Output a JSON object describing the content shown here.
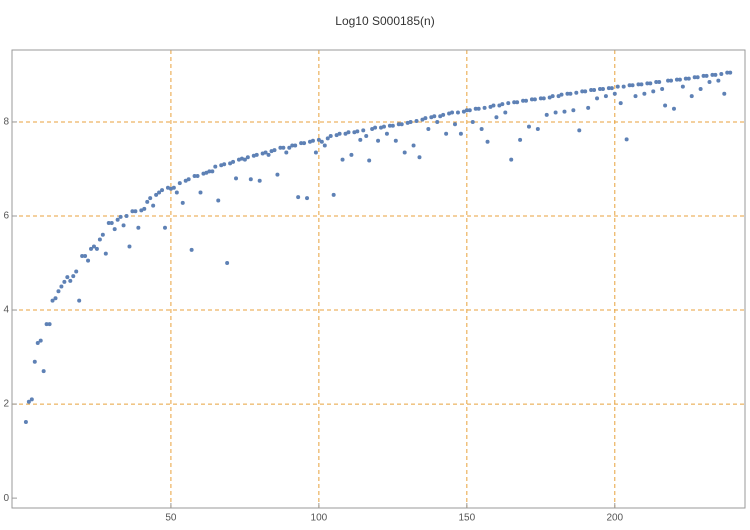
{
  "chart_data": {
    "type": "scatter",
    "title": "Log10 S000185(n)",
    "x": [
      1,
      2,
      3,
      4,
      5,
      6,
      7,
      8,
      9,
      10,
      11,
      12,
      13,
      14,
      15,
      16,
      17,
      18,
      19,
      20,
      21,
      22,
      23,
      24,
      25,
      26,
      27,
      28,
      29,
      30,
      31,
      32,
      33,
      34,
      35,
      36,
      37,
      38,
      39,
      40,
      41,
      42,
      43,
      44,
      45,
      46,
      47,
      48,
      49,
      50,
      51,
      52,
      53,
      54,
      55,
      56,
      57,
      58,
      59,
      60,
      61,
      62,
      63,
      64,
      65,
      66,
      67,
      68,
      69,
      70,
      71,
      72,
      73,
      74,
      75,
      76,
      77,
      78,
      79,
      80,
      81,
      82,
      83,
      84,
      85,
      86,
      87,
      88,
      89,
      90,
      91,
      92,
      93,
      94,
      95,
      96,
      97,
      98,
      99,
      100,
      101,
      102,
      103,
      104,
      105,
      106,
      107,
      108,
      109,
      110,
      111,
      112,
      113,
      114,
      115,
      116,
      117,
      118,
      119,
      120,
      121,
      122,
      123,
      124,
      125,
      126,
      127,
      128,
      129,
      130,
      131,
      132,
      133,
      134,
      135,
      136,
      137,
      138,
      139,
      140,
      141,
      142,
      143,
      144,
      145,
      146,
      147,
      148,
      149,
      150,
      151,
      152,
      153,
      154,
      155,
      156,
      157,
      158,
      159,
      160,
      161,
      162,
      163,
      164,
      165,
      166,
      167,
      168,
      169,
      170,
      171,
      172,
      173,
      174,
      175,
      176,
      177,
      178,
      179,
      180,
      181,
      182,
      183,
      184,
      185,
      186,
      187,
      188,
      189,
      190,
      191,
      192,
      193,
      194,
      195,
      196,
      197,
      198,
      199,
      200,
      201,
      202,
      203,
      204,
      205,
      206,
      207,
      208,
      209,
      210,
      211,
      212,
      213,
      214,
      215,
      216,
      217,
      218,
      219,
      220,
      221,
      222,
      223,
      224,
      225,
      226,
      227,
      228,
      229,
      230,
      231,
      232,
      233,
      234,
      235,
      236,
      237,
      238,
      239
    ],
    "values": [
      1.62,
      2.05,
      2.1,
      2.9,
      3.3,
      3.35,
      2.7,
      3.7,
      3.7,
      4.2,
      4.25,
      4.4,
      4.5,
      4.6,
      4.7,
      4.62,
      4.72,
      4.82,
      4.2,
      5.15,
      5.15,
      5.05,
      5.3,
      5.35,
      5.3,
      5.5,
      5.6,
      5.2,
      5.85,
      5.85,
      5.72,
      5.92,
      5.98,
      5.8,
      6.0,
      5.35,
      6.1,
      6.1,
      5.75,
      6.12,
      6.15,
      6.3,
      6.38,
      6.22,
      6.45,
      6.5,
      6.55,
      5.75,
      6.6,
      6.58,
      6.6,
      6.5,
      6.7,
      6.28,
      6.75,
      6.78,
      5.28,
      6.85,
      6.85,
      6.5,
      6.9,
      6.92,
      6.95,
      6.95,
      7.05,
      6.33,
      7.08,
      7.1,
      5.0,
      7.12,
      7.15,
      6.8,
      7.2,
      7.22,
      7.2,
      7.25,
      6.78,
      7.28,
      7.3,
      6.75,
      7.33,
      7.35,
      7.3,
      7.38,
      7.4,
      6.88,
      7.45,
      7.45,
      7.35,
      7.45,
      7.5,
      7.5,
      6.4,
      7.55,
      7.55,
      6.38,
      7.58,
      7.6,
      7.35,
      7.62,
      7.58,
      7.5,
      7.65,
      7.7,
      6.45,
      7.72,
      7.75,
      7.2,
      7.75,
      7.78,
      7.3,
      7.78,
      7.8,
      7.62,
      7.82,
      7.7,
      7.18,
      7.85,
      7.88,
      7.6,
      7.88,
      7.9,
      7.75,
      7.92,
      7.92,
      7.6,
      7.95,
      7.95,
      7.35,
      7.98,
      8.0,
      7.5,
      8.02,
      7.25,
      8.05,
      8.08,
      7.85,
      8.1,
      8.12,
      8.0,
      8.12,
      8.15,
      7.75,
      8.18,
      8.2,
      7.95,
      8.2,
      7.75,
      8.22,
      8.25,
      8.25,
      8.0,
      8.28,
      8.28,
      7.85,
      8.3,
      7.58,
      8.32,
      8.35,
      8.1,
      8.35,
      8.38,
      8.2,
      8.4,
      7.2,
      8.42,
      8.42,
      7.62,
      8.45,
      8.45,
      7.9,
      8.48,
      8.48,
      7.85,
      8.5,
      8.5,
      8.15,
      8.52,
      8.55,
      8.2,
      8.55,
      8.58,
      8.22,
      8.6,
      8.6,
      8.25,
      8.62,
      7.82,
      8.65,
      8.65,
      8.3,
      8.68,
      8.68,
      8.5,
      8.7,
      8.7,
      8.55,
      8.72,
      8.72,
      8.6,
      8.75,
      8.4,
      8.75,
      7.63,
      8.78,
      8.78,
      8.55,
      8.8,
      8.8,
      8.6,
      8.82,
      8.82,
      8.65,
      8.85,
      8.85,
      8.7,
      8.35,
      8.88,
      8.88,
      8.28,
      8.9,
      8.9,
      8.75,
      8.92,
      8.92,
      8.55,
      8.95,
      8.95,
      8.7,
      8.98,
      8.98,
      8.85,
      9.0,
      9.0,
      8.88,
      9.02,
      8.6,
      9.05,
      9.05
    ],
    "color": "#5e81b5",
    "grid_color": "#e8a23c",
    "xlim": [
      -3.7,
      244
    ],
    "ylim": [
      -0.21,
      9.53
    ],
    "xticks": [
      50,
      100,
      150,
      200
    ],
    "yticks": [
      0,
      2,
      4,
      6,
      8
    ],
    "grid": true
  }
}
